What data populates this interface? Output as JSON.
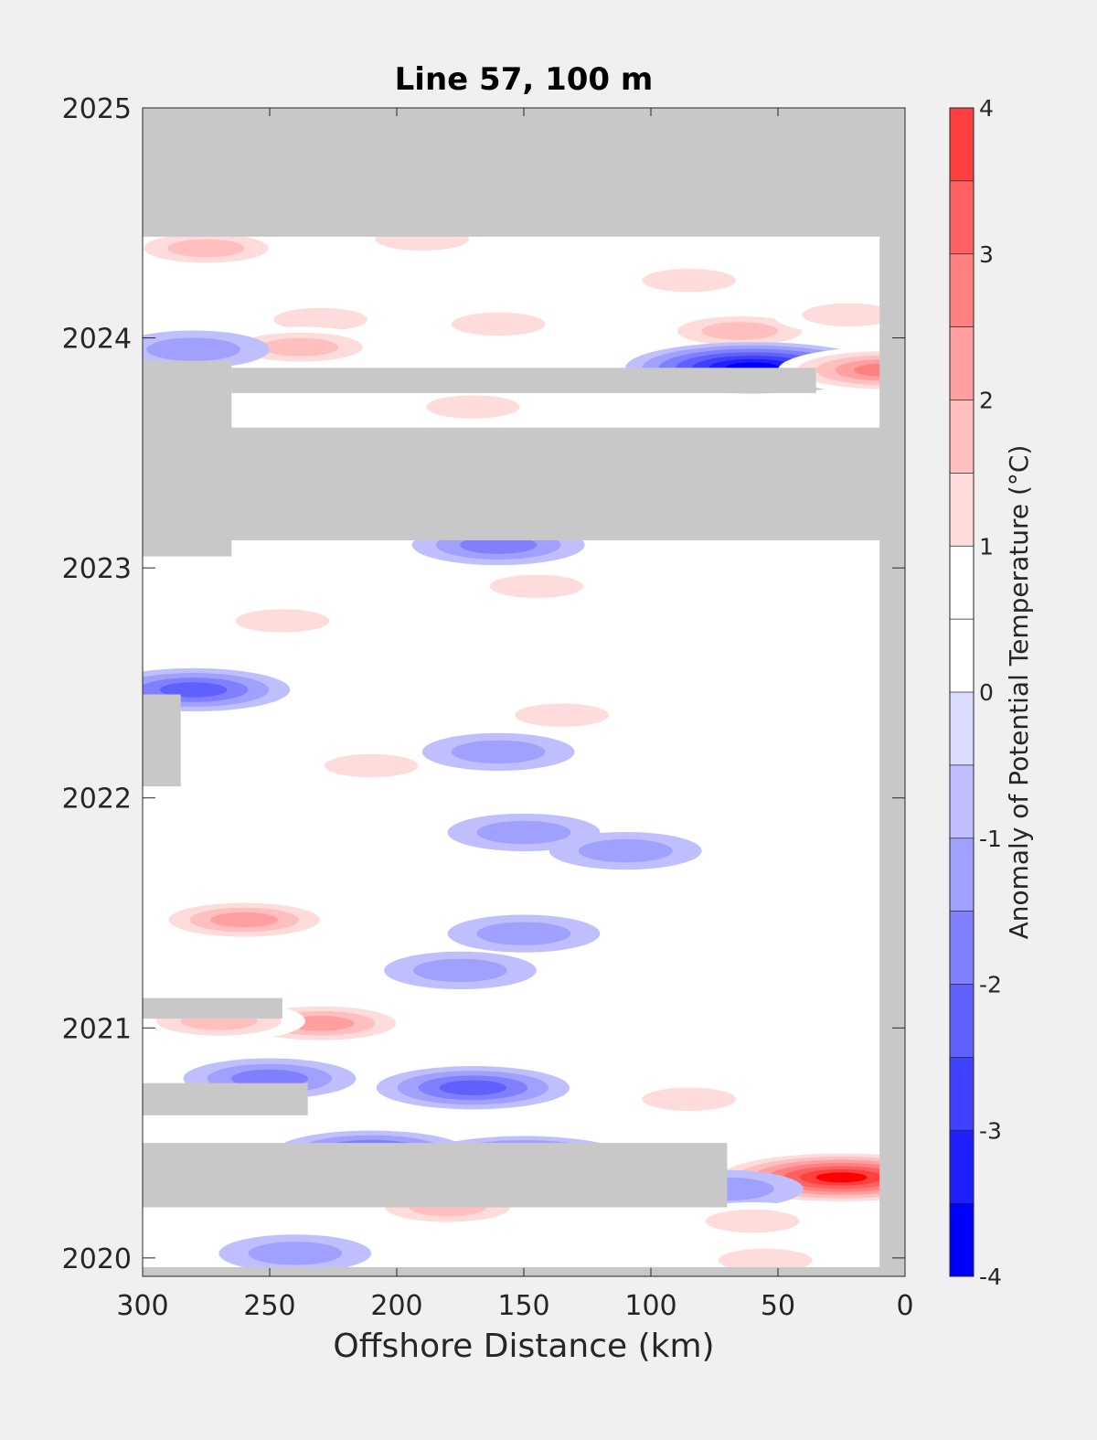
{
  "chart_data": {
    "type": "heatmap",
    "title": "Line 57, 100 m",
    "xlabel": "Offshore Distance (km)",
    "ylabel": "",
    "colorbar_label": "Anomaly of Potential Temperature (°C)",
    "x_ticks": [
      300,
      250,
      200,
      150,
      100,
      50,
      0
    ],
    "y_ticks": [
      2025,
      2024,
      2023,
      2022,
      2021,
      2020
    ],
    "xlim": [
      300,
      0
    ],
    "ylim": [
      2019.92,
      2025
    ],
    "x_reversed": true,
    "grid": false,
    "colorbar": {
      "ticks": [
        4,
        3,
        2,
        1,
        0,
        -1,
        -2,
        -3,
        -4
      ],
      "range": [
        -4,
        4
      ],
      "levels": [
        -4,
        -3.5,
        -3,
        -2.5,
        -2,
        -1.5,
        -1,
        -0.5,
        0,
        0.5,
        1,
        1.5,
        2,
        2.5,
        3,
        3.5,
        4
      ],
      "colors": [
        "#0000ff",
        "#2020ff",
        "#4040ff",
        "#6060ff",
        "#8080ff",
        "#a0a0ff",
        "#bfbfff",
        "#dcdcff",
        "#ffffff",
        "#ffffff",
        "#ffdcdc",
        "#ffbfbf",
        "#ff9f9f",
        "#ff8080",
        "#ff6060",
        "#ff4040",
        "#ff2020",
        "#ff0000"
      ],
      "placement": "right"
    },
    "nodata_color": "#c8c8c8",
    "nodata_regions": [
      {
        "x": [
          300,
          0
        ],
        "y": [
          2024.44,
          2025
        ]
      },
      {
        "x": [
          300,
          0
        ],
        "y": [
          2023.12,
          2023.61
        ]
      },
      {
        "x": [
          300,
          265
        ],
        "y": [
          2023.05,
          2023.9
        ]
      },
      {
        "x": [
          265,
          35
        ],
        "y": [
          2023.76,
          2023.87
        ]
      },
      {
        "x": [
          10,
          0
        ],
        "y": [
          2019.92,
          2024.44
        ]
      },
      {
        "x": [
          300,
          285
        ],
        "y": [
          2022.05,
          2022.45
        ]
      },
      {
        "x": [
          300,
          245
        ],
        "y": [
          2021.04,
          2021.13
        ]
      },
      {
        "x": [
          300,
          235
        ],
        "y": [
          2020.62,
          2020.76
        ]
      },
      {
        "x": [
          300,
          70
        ],
        "y": [
          2020.22,
          2020.5
        ]
      },
      {
        "x": [
          300,
          0
        ],
        "y": [
          2019.92,
          2019.96
        ]
      }
    ],
    "anomalies": [
      {
        "x": 275,
        "y": 2024.39,
        "value": 1.5
      },
      {
        "x": 190,
        "y": 2024.43,
        "value": 1.2
      },
      {
        "x": 85,
        "y": 2024.25,
        "value": 1.0
      },
      {
        "x": 230,
        "y": 2024.08,
        "value": 1.0
      },
      {
        "x": 238,
        "y": 2023.96,
        "value": 1.5
      },
      {
        "x": 160,
        "y": 2024.06,
        "value": 1.0
      },
      {
        "x": 65,
        "y": 2024.03,
        "value": 1.5
      },
      {
        "x": 22,
        "y": 2024.1,
        "value": 1.0
      },
      {
        "x": 280,
        "y": 2023.95,
        "value": -1.0
      },
      {
        "x": 60,
        "y": 2023.87,
        "value": -3.5
      },
      {
        "x": 8,
        "y": 2023.86,
        "value": 2.5
      },
      {
        "x": 170,
        "y": 2023.7,
        "value": 1.0
      },
      {
        "x": 160,
        "y": 2023.1,
        "value": -1.5
      },
      {
        "x": 145,
        "y": 2022.92,
        "value": 1.2
      },
      {
        "x": 245,
        "y": 2022.77,
        "value": 1.0
      },
      {
        "x": 280,
        "y": 2022.47,
        "value": -2.0
      },
      {
        "x": 135,
        "y": 2022.36,
        "value": 1.0
      },
      {
        "x": 210,
        "y": 2022.14,
        "value": 1.2
      },
      {
        "x": 160,
        "y": 2022.2,
        "value": -1.0
      },
      {
        "x": 150,
        "y": 2021.85,
        "value": -1.0
      },
      {
        "x": 110,
        "y": 2021.77,
        "value": -1.0
      },
      {
        "x": 260,
        "y": 2021.47,
        "value": 2.0
      },
      {
        "x": 150,
        "y": 2021.41,
        "value": -1.0
      },
      {
        "x": 175,
        "y": 2021.25,
        "value": -1.0
      },
      {
        "x": 230,
        "y": 2021.02,
        "value": 2.0
      },
      {
        "x": 270,
        "y": 2021.03,
        "value": 1.5
      },
      {
        "x": 170,
        "y": 2020.74,
        "value": -2.0
      },
      {
        "x": 250,
        "y": 2020.78,
        "value": -1.5
      },
      {
        "x": 85,
        "y": 2020.69,
        "value": 1.0
      },
      {
        "x": 210,
        "y": 2020.46,
        "value": -2.0
      },
      {
        "x": 150,
        "y": 2020.43,
        "value": -2.5
      },
      {
        "x": 25,
        "y": 2020.35,
        "value": 4.0
      },
      {
        "x": 180,
        "y": 2020.22,
        "value": 1.5
      },
      {
        "x": 70,
        "y": 2020.3,
        "value": -1.0
      },
      {
        "x": 60,
        "y": 2020.16,
        "value": 1.0
      },
      {
        "x": 240,
        "y": 2020.02,
        "value": -1.0
      },
      {
        "x": 55,
        "y": 2019.99,
        "value": 1.0
      }
    ]
  }
}
